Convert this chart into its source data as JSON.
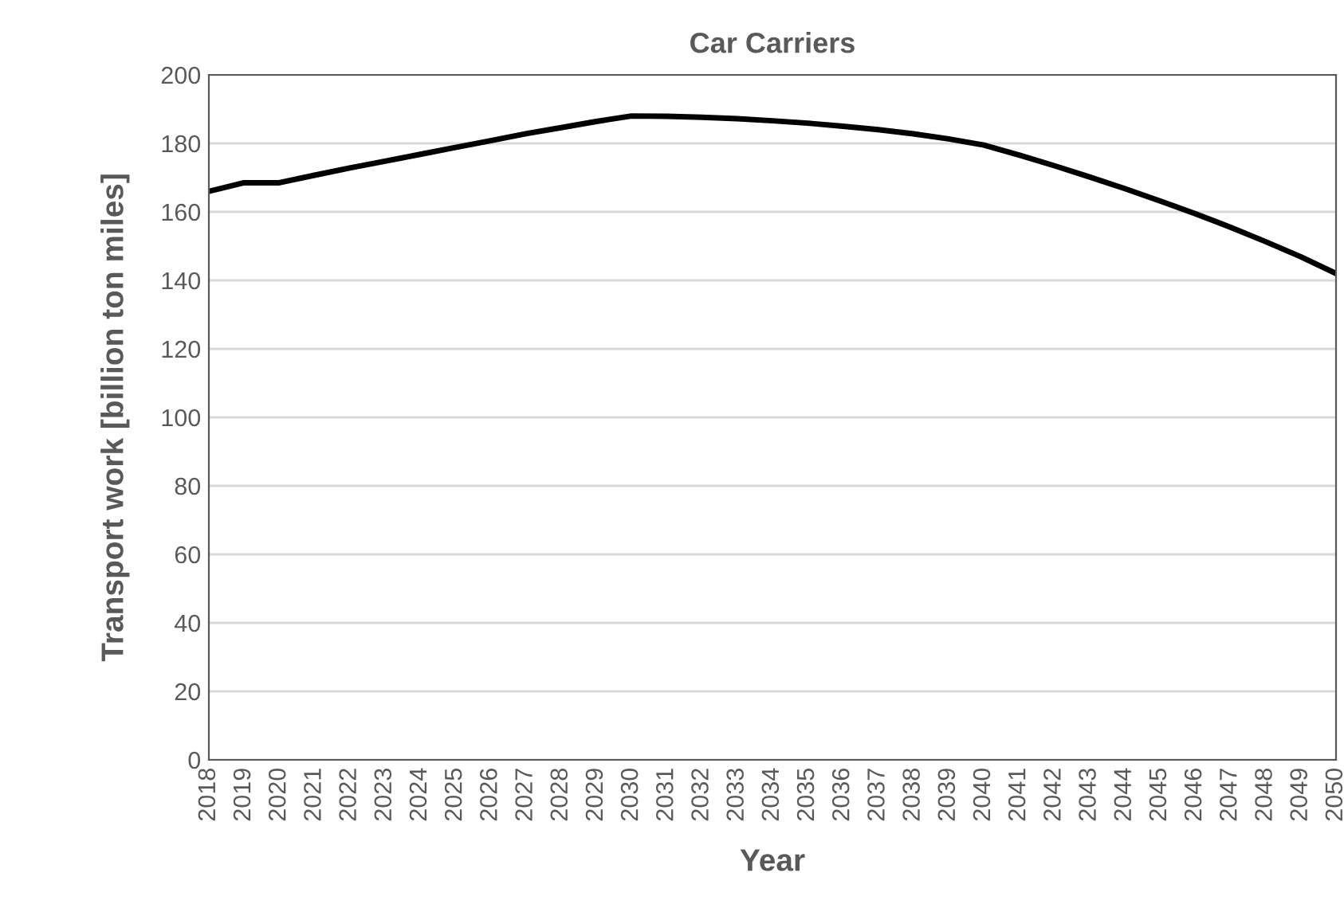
{
  "chart_data": {
    "type": "line",
    "title": "Car Carriers",
    "xlabel": "Year",
    "ylabel": "Transport work [billion ton miles]",
    "categories": [
      "2018",
      "2019",
      "2020",
      "2021",
      "2022",
      "2023",
      "2024",
      "2025",
      "2026",
      "2027",
      "2028",
      "2029",
      "2030",
      "2031",
      "2032",
      "2033",
      "2034",
      "2035",
      "2036",
      "2037",
      "2038",
      "2039",
      "2040",
      "2041",
      "2042",
      "2043",
      "2044",
      "2045",
      "2046",
      "2047",
      "2048",
      "2049",
      "2050"
    ],
    "series": [
      {
        "color": "#000000",
        "values": [
          166,
          168.5,
          168.5,
          170.7,
          172.8,
          174.8,
          176.8,
          178.8,
          180.8,
          182.8,
          184.6,
          186.4,
          188,
          187.9,
          187.6,
          187.2,
          186.6,
          185.9,
          185,
          184,
          182.8,
          181.3,
          179.5,
          176.6,
          173.5,
          170.2,
          166.8,
          163.2,
          159.5,
          155.5,
          151.3,
          146.9,
          142
        ]
      }
    ],
    "ylim": [
      0,
      200
    ],
    "yticks": [
      0,
      20,
      40,
      60,
      80,
      100,
      120,
      140,
      160,
      180,
      200
    ],
    "grid": "y",
    "legend": false,
    "marker": "none",
    "line_style": "solid"
  }
}
